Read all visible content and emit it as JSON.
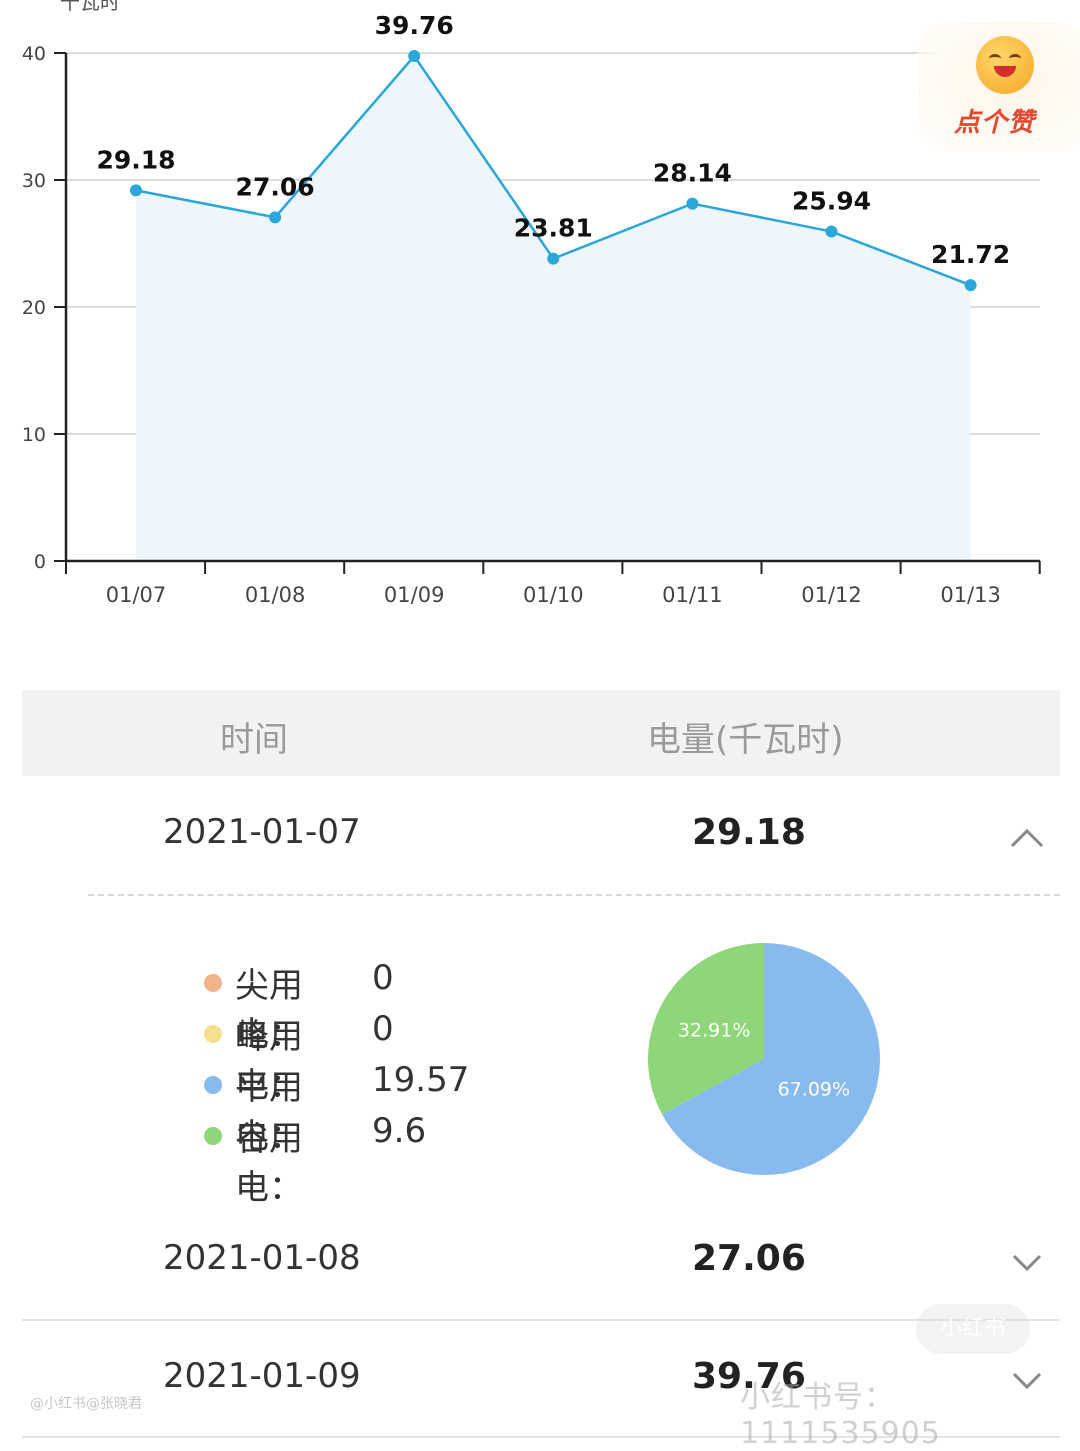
{
  "chart_data": {
    "type": "area",
    "ylabel": "千瓦时",
    "categories": [
      "01/07",
      "01/08",
      "01/09",
      "01/10",
      "01/11",
      "01/12",
      "01/13"
    ],
    "values": [
      29.18,
      27.06,
      39.76,
      23.81,
      28.14,
      25.94,
      21.72
    ],
    "data_labels": [
      "29.18",
      "27.06",
      "39.76",
      "23.81",
      "28.14",
      "25.94",
      "21.72"
    ],
    "yticks": [
      0,
      10,
      20,
      30,
      40
    ],
    "ylim": [
      0,
      40
    ],
    "grid": true,
    "colors": {
      "line": "#2aa6d8",
      "fill": "#eef6fc",
      "grid": "#dddddd"
    }
  },
  "like_badge": {
    "text": "点个赞",
    "icon": "laughing-face-icon"
  },
  "table": {
    "headers": {
      "time": "时间",
      "power": "电量(千瓦时)"
    },
    "rows": [
      {
        "date": "2021-01-07",
        "value": "29.18",
        "expanded": true
      },
      {
        "date": "2021-01-08",
        "value": "27.06",
        "expanded": false
      },
      {
        "date": "2021-01-09",
        "value": "39.76",
        "expanded": false
      }
    ]
  },
  "breakdown": {
    "legend": [
      {
        "label": "尖用电：",
        "value": "0",
        "color": "#f0b48a"
      },
      {
        "label": "峰用电：",
        "value": "0",
        "color": "#f4e08e"
      },
      {
        "label": "平用电：",
        "value": "19.57",
        "color": "#88b9ef"
      },
      {
        "label": "谷用电：",
        "value": "9.6",
        "color": "#8fd67a"
      }
    ],
    "pie": [
      {
        "name": "平用电",
        "percent": 67.09,
        "label": "67.09%",
        "color": "#88b9ef"
      },
      {
        "name": "谷用电",
        "percent": 32.91,
        "label": "32.91%",
        "color": "#8fd67a"
      }
    ]
  },
  "watermarks": {
    "brand": "小红书",
    "id_text": "小红书号：1111535905",
    "small": "@小红书@张晓君"
  }
}
